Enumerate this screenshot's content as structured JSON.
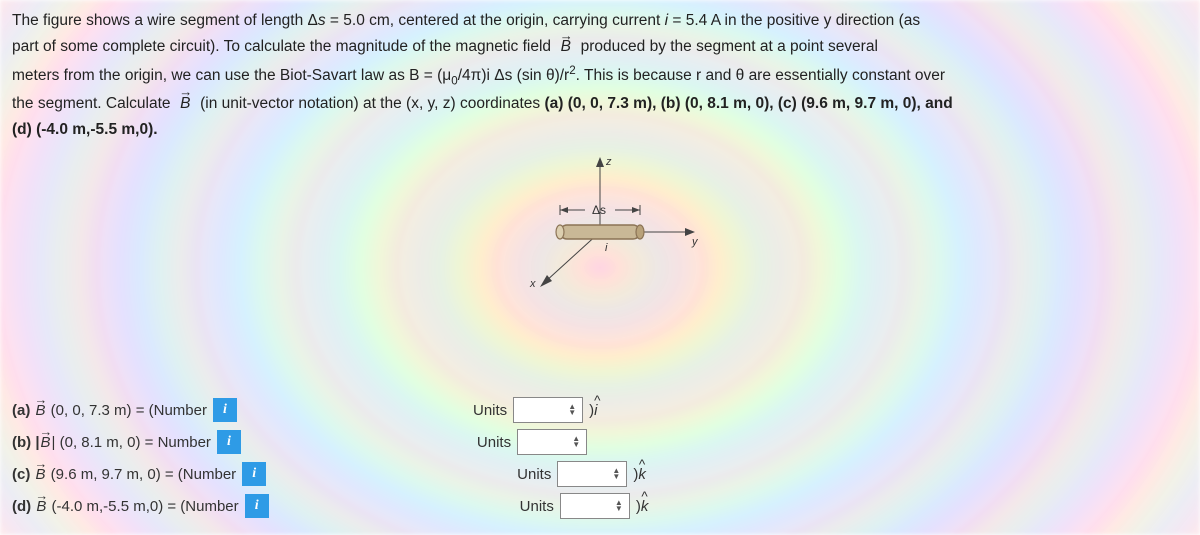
{
  "problem": {
    "l1a": "The figure shows a wire segment of length Δ",
    "l1b": " = 5.0 cm, centered at the origin, carrying current ",
    "l1c": " = 5.4 A in the positive y direction (as",
    "l2a": "part of some complete circuit). To calculate the magnitude of the magnetic field ",
    "l2b": " produced by the segment at a point several",
    "l3a": "meters from the origin, we can use the Biot-Savart law as B = (μ",
    "l3b": "/4π)i Δs (sin θ)/r",
    "l3c": ". This is because r and θ are essentially constant over",
    "l4a": "the segment. Calculate ",
    "l4b": " (in unit-vector notation) at the (x, y, z) coordinates ",
    "coords": "(a) (0, 0, 7.3 m), (b) (0, 8.1 m, 0), (c) (9.6 m, 9.7 m, 0), and",
    "l5": "(d) (-4.0 m,-5.5 m,0)."
  },
  "diagram": {
    "ds_label": "Δs",
    "axes": {
      "x": "x",
      "y": "y",
      "z": "z",
      "i": "i"
    },
    "colors": {
      "wire": "#8b7355",
      "arrow": "#555555",
      "axis": "#444444"
    }
  },
  "answers": {
    "rows": [
      {
        "key": "a",
        "prefix": "(a) ",
        "vec": "B",
        "coords": " (0, 0, 7.3 m) = (Number",
        "units_label": "Units",
        "suffix_paren": ")",
        "suffix_hat": "i",
        "has_suffix": true,
        "info": "i",
        "ml": 230
      },
      {
        "key": "b",
        "prefix": "(b) |",
        "vec": "B",
        "coords": "| (0, 8.1 m, 0) = Number",
        "units_label": "Units",
        "has_suffix": false,
        "info": "i",
        "ml": 230
      },
      {
        "key": "c",
        "prefix": "(c) ",
        "vec": "B",
        "coords": " (9.6 m, 9.7 m, 0) = (Number",
        "units_label": "Units",
        "suffix_paren": ")",
        "suffix_hat": "k",
        "has_suffix": true,
        "info": "i",
        "ml": 245
      },
      {
        "key": "d",
        "prefix": "(d) ",
        "vec": "B",
        "coords": " (-4.0 m,-5.5 m,0) = (Number",
        "units_label": "Units",
        "suffix_paren": ")",
        "suffix_hat": "k",
        "has_suffix": true,
        "info": "i",
        "ml": 245
      }
    ]
  }
}
